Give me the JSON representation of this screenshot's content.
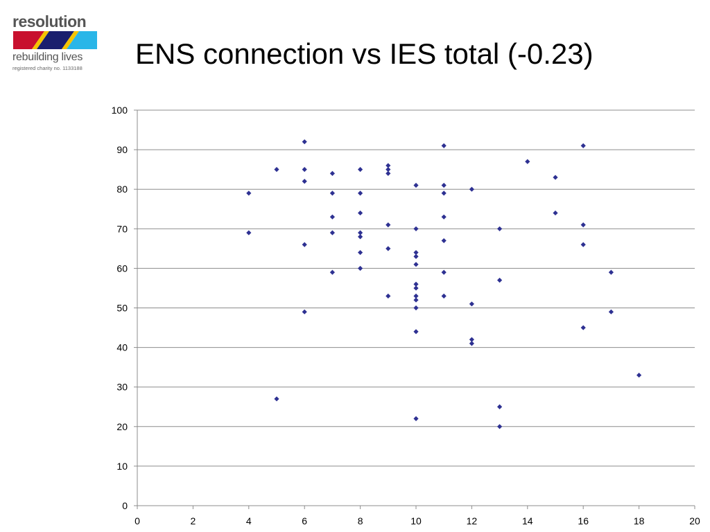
{
  "logo": {
    "word": "resolution",
    "tagline": "rebuilding lives",
    "charity": "registered charity no. 1133188",
    "colors": {
      "text": "#555555",
      "red": "#c8102e",
      "navy": "#1a1f6e",
      "sky": "#29b6e8",
      "yellow": "#f5c400"
    }
  },
  "title": "ENS connection vs IES total (-0.23)",
  "chart_data": {
    "type": "scatter",
    "title": "ENS connection vs IES total (-0.23)",
    "xlabel": "",
    "ylabel": "",
    "xlim": [
      0,
      20
    ],
    "ylim": [
      0,
      100
    ],
    "x_ticks": [
      0,
      2,
      4,
      6,
      8,
      10,
      12,
      14,
      16,
      18,
      20
    ],
    "y_ticks": [
      0,
      10,
      20,
      30,
      40,
      50,
      60,
      70,
      80,
      90,
      100
    ],
    "grid": "horizontal",
    "marker": "diamond",
    "color": "#2e3192",
    "points": [
      [
        4,
        79
      ],
      [
        4,
        69
      ],
      [
        5,
        85
      ],
      [
        5,
        27
      ],
      [
        6,
        92
      ],
      [
        6,
        85
      ],
      [
        6,
        82
      ],
      [
        6,
        66
      ],
      [
        6,
        49
      ],
      [
        7,
        84
      ],
      [
        7,
        79
      ],
      [
        7,
        73
      ],
      [
        7,
        69
      ],
      [
        7,
        59
      ],
      [
        8,
        85
      ],
      [
        8,
        79
      ],
      [
        8,
        74
      ],
      [
        8,
        69
      ],
      [
        8,
        68
      ],
      [
        8,
        64
      ],
      [
        8,
        60
      ],
      [
        9,
        86
      ],
      [
        9,
        85
      ],
      [
        9,
        84
      ],
      [
        9,
        71
      ],
      [
        9,
        65
      ],
      [
        9,
        53
      ],
      [
        10,
        81
      ],
      [
        10,
        70
      ],
      [
        10,
        64
      ],
      [
        10,
        63
      ],
      [
        10,
        61
      ],
      [
        10,
        56
      ],
      [
        10,
        55
      ],
      [
        10,
        53
      ],
      [
        10,
        52
      ],
      [
        10,
        50
      ],
      [
        10,
        44
      ],
      [
        10,
        22
      ],
      [
        11,
        91
      ],
      [
        11,
        81
      ],
      [
        11,
        79
      ],
      [
        11,
        73
      ],
      [
        11,
        67
      ],
      [
        11,
        59
      ],
      [
        11,
        53
      ],
      [
        12,
        80
      ],
      [
        12,
        51
      ],
      [
        12,
        42
      ],
      [
        12,
        41
      ],
      [
        13,
        70
      ],
      [
        13,
        57
      ],
      [
        13,
        25
      ],
      [
        13,
        20
      ],
      [
        14,
        87
      ],
      [
        15,
        83
      ],
      [
        15,
        74
      ],
      [
        16,
        91
      ],
      [
        16,
        71
      ],
      [
        16,
        66
      ],
      [
        16,
        45
      ],
      [
        17,
        59
      ],
      [
        17,
        49
      ],
      [
        18,
        33
      ]
    ]
  }
}
